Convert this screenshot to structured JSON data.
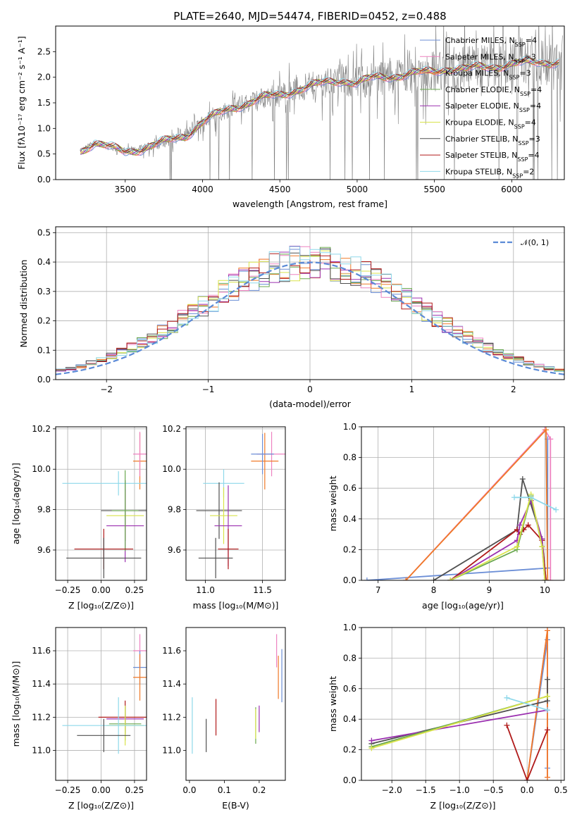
{
  "chart_data": [
    {
      "type": "line",
      "title": "PLATE=2640, MJD=54474, FIBERID=0452, z=0.488",
      "xlabel": "wavelength [Angstrom, rest frame]",
      "ylabel": "Flux [f_λ10^-17 erg cm^-2 s^-1 A^-1]",
      "xlim": [
        3050,
        6340
      ],
      "ylim": [
        0,
        3.0
      ],
      "xticks": [
        "3500",
        "4000",
        "4500",
        "5000",
        "5500",
        "6000"
      ],
      "yticks": [
        "0.0",
        "0.5",
        "1.0",
        "1.5",
        "2.0",
        "2.5"
      ],
      "grid": false,
      "legend_position": "upper right",
      "data_color": "#808080",
      "model_x": [
        3200,
        3300,
        3400,
        3500,
        3600,
        3700,
        3800,
        3900,
        4000,
        4100,
        4200,
        4300,
        4400,
        4500,
        4600,
        4700,
        4800,
        4900,
        5000,
        5100,
        5200,
        5300,
        5400,
        5500,
        5600,
        5700,
        5800,
        5900,
        6000,
        6100,
        6200
      ],
      "model_y": [
        0.55,
        0.72,
        0.62,
        0.55,
        0.6,
        0.68,
        0.78,
        0.88,
        1.12,
        1.28,
        1.42,
        1.5,
        1.6,
        1.66,
        1.75,
        1.82,
        1.9,
        1.95,
        1.88,
        1.98,
        2.02,
        2.05,
        2.08,
        2.12,
        2.18,
        2.15,
        2.2,
        2.22,
        2.25,
        2.28,
        2.3
      ],
      "series": [
        {
          "name": "Chabrier MILES, N_SSP=4",
          "color": "#6b8ed6"
        },
        {
          "name": "Salpeter MILES, N_SSP=3",
          "color": "#ee82c0"
        },
        {
          "name": "Kroupa MILES, N_SSP=3",
          "color": "#f07a28"
        },
        {
          "name": "Chabrier ELODIE, N_SSP=4",
          "color": "#6aa84f"
        },
        {
          "name": "Salpeter ELODIE, N_SSP=4",
          "color": "#9b30b0"
        },
        {
          "name": "Kroupa ELODIE, N_SSP=4",
          "color": "#d9e34a"
        },
        {
          "name": "Chabrier STELIB, N_SSP=3",
          "color": "#505050"
        },
        {
          "name": "Salpeter STELIB, N_SSP=4",
          "color": "#b01a1a"
        },
        {
          "name": "Kroupa STELIB, N_SSP=2",
          "color": "#8ed8ea"
        }
      ]
    },
    {
      "type": "line",
      "title": "",
      "xlabel": "(data-model)/error",
      "ylabel": "Normed distribution",
      "xlim": [
        -2.5,
        2.5
      ],
      "ylim": [
        0,
        0.52
      ],
      "xticks": [
        "-2",
        "-1",
        "0",
        "1",
        "2"
      ],
      "yticks": [
        "0.0",
        "0.1",
        "0.2",
        "0.3",
        "0.4",
        "0.5"
      ],
      "grid": true,
      "legend_position": "upper right",
      "legend_label": "𝒩(0, 1)",
      "gauss_color": "#5b8ad6",
      "bin_edges_start": -2.5,
      "bin_width": 0.1,
      "bin_count": 50,
      "step_colors": [
        "#6b8ed6",
        "#ee82c0",
        "#f07a28",
        "#6aa84f",
        "#9b30b0",
        "#d9e34a",
        "#505050",
        "#b01a1a",
        "#8ed8ea"
      ]
    },
    {
      "type": "scatter",
      "xlabel": "Z [log10(Z/Z⊙)]",
      "ylabel": "age [log10(age/yr)]",
      "xlim": [
        -0.34,
        0.34
      ],
      "ylim": [
        9.45,
        10.21
      ],
      "xticks": [
        "-0.25",
        "0.00",
        "0.25"
      ],
      "yticks": [
        "9.6",
        "9.8",
        "10.0",
        "10.2"
      ],
      "grid": true,
      "points": [
        {
          "x": 0.29,
          "y": 10.04,
          "xerr": 0.05,
          "yerr": 0.14,
          "color": "#f07a28"
        },
        {
          "x": 0.29,
          "y": 10.075,
          "xerr": 0.05,
          "yerr": 0.11,
          "color": "#ee82c0"
        },
        {
          "x": 0.13,
          "y": 9.93,
          "xerr": 0.42,
          "yerr": 0.06,
          "color": "#8ed8ea"
        },
        {
          "x": 0.18,
          "y": 9.795,
          "xerr": 0.18,
          "yerr": 0.15,
          "color": "#505050"
        },
        {
          "x": 0.18,
          "y": 9.77,
          "xerr": 0.14,
          "yerr": 0.12,
          "color": "#d9e34a"
        },
        {
          "x": 0.18,
          "y": 9.72,
          "xerr": 0.14,
          "yerr": 0.18,
          "color": "#9b30b0"
        },
        {
          "x": 0.18,
          "y": 9.795,
          "xerr": 0.1,
          "yerr": 0.2,
          "color": "#6aa84f"
        },
        {
          "x": 0.02,
          "y": 9.605,
          "xerr": 0.22,
          "yerr": 0.1,
          "color": "#b01a1a"
        },
        {
          "x": 0.02,
          "y": 9.56,
          "xerr": 0.28,
          "yerr": 0.1,
          "color": "#505050"
        }
      ]
    },
    {
      "type": "scatter",
      "xlabel": "mass [log10(M/M⊙)]",
      "ylabel": "",
      "xlim": [
        10.83,
        11.7
      ],
      "ylim": [
        9.45,
        10.21
      ],
      "xticks": [
        "11.0",
        "11.5"
      ],
      "yticks": [
        "9.6",
        "9.8",
        "10.0",
        "10.2"
      ],
      "grid": true,
      "points": [
        {
          "x": 11.58,
          "y": 10.075,
          "xerr": 0.13,
          "yerr": 0.11,
          "color": "#ee82c0"
        },
        {
          "x": 11.52,
          "y": 10.04,
          "xerr": 0.12,
          "yerr": 0.14,
          "color": "#f07a28"
        },
        {
          "x": 11.5,
          "y": 10.075,
          "xerr": 0.1,
          "yerr": 0.1,
          "color": "#6b8ed6"
        },
        {
          "x": 11.16,
          "y": 9.93,
          "xerr": 0.18,
          "yerr": 0.07,
          "color": "#8ed8ea"
        },
        {
          "x": 11.12,
          "y": 9.795,
          "xerr": 0.2,
          "yerr": 0.14,
          "color": "#505050"
        },
        {
          "x": 11.16,
          "y": 9.77,
          "xerr": 0.12,
          "yerr": 0.14,
          "color": "#d9e34a"
        },
        {
          "x": 11.2,
          "y": 9.72,
          "xerr": 0.12,
          "yerr": 0.2,
          "color": "#9b30b0"
        },
        {
          "x": 11.2,
          "y": 9.605,
          "xerr": 0.09,
          "yerr": 0.1,
          "color": "#b01a1a"
        },
        {
          "x": 11.09,
          "y": 9.56,
          "xerr": 0.15,
          "yerr": 0.1,
          "color": "#505050"
        }
      ]
    },
    {
      "type": "line",
      "xlabel": "age [log10(age/yr)]",
      "ylabel": "mass weight",
      "xlim": [
        6.7,
        10.35
      ],
      "ylim": [
        0,
        1.0
      ],
      "xticks": [
        "7",
        "8",
        "9",
        "10"
      ],
      "yticks": [
        "0.0",
        "0.2",
        "0.4",
        "0.6",
        "0.8",
        "1.0"
      ],
      "grid": true,
      "series": [
        {
          "color": "#6b8ed6",
          "x": [
            6.8,
            10.05,
            10.05
          ],
          "y": [
            0.0,
            0.08,
            0.92
          ]
        },
        {
          "color": "#ee82c0",
          "x": [
            7.5,
            10.0,
            10.1,
            10.1
          ],
          "y": [
            0.0,
            0.98,
            0.92,
            0.0
          ]
        },
        {
          "color": "#f07a28",
          "x": [
            7.5,
            10.02,
            10.05
          ],
          "y": [
            0.0,
            0.98,
            0.0
          ]
        },
        {
          "color": "#505050",
          "x": [
            8.0,
            9.5,
            9.6,
            9.95,
            10.02
          ],
          "y": [
            0.0,
            0.33,
            0.66,
            0.27,
            0.0
          ]
        },
        {
          "color": "#b01a1a",
          "x": [
            8.3,
            9.5,
            9.55,
            9.62,
            9.7,
            9.95,
            10.02
          ],
          "y": [
            0.0,
            0.33,
            0.3,
            0.33,
            0.36,
            0.26,
            0.0
          ]
        },
        {
          "color": "#9b30b0",
          "x": [
            8.3,
            9.5,
            9.55,
            9.75,
            9.95,
            10.0
          ],
          "y": [
            0.0,
            0.26,
            0.36,
            0.52,
            0.27,
            0.0
          ]
        },
        {
          "color": "#6aa84f",
          "x": [
            8.3,
            9.5,
            9.75,
            9.95,
            10.0
          ],
          "y": [
            0.0,
            0.2,
            0.55,
            0.22,
            0.0
          ]
        },
        {
          "color": "#d9e34a",
          "x": [
            8.3,
            9.5,
            9.75,
            9.95,
            10.0
          ],
          "y": [
            0.0,
            0.22,
            0.56,
            0.22,
            0.0
          ]
        },
        {
          "color": "#8ed8ea",
          "x": [
            9.45,
            9.75,
            10.2
          ],
          "y": [
            0.54,
            0.54,
            0.46
          ]
        }
      ]
    },
    {
      "type": "scatter",
      "xlabel": "Z [log10(Z/Z⊙)]",
      "ylabel": "mass [log10(M/M⊙)]",
      "xlim": [
        -0.34,
        0.34
      ],
      "ylim": [
        10.82,
        11.74
      ],
      "xticks": [
        "-0.25",
        "0.00",
        "0.25"
      ],
      "yticks": [
        "11.0",
        "11.2",
        "11.4",
        "11.6"
      ],
      "grid": true,
      "points": [
        {
          "x": 0.29,
          "y": 11.6,
          "xerr": 0.05,
          "yerr": 0.1,
          "color": "#ee82c0"
        },
        {
          "x": 0.29,
          "y": 11.5,
          "xerr": 0.05,
          "yerr": 0.1,
          "color": "#6b8ed6"
        },
        {
          "x": 0.29,
          "y": 11.44,
          "xerr": 0.05,
          "yerr": 0.14,
          "color": "#f07a28"
        },
        {
          "x": 0.18,
          "y": 11.2,
          "xerr": 0.2,
          "yerr": 0.1,
          "color": "#b01a1a"
        },
        {
          "x": 0.18,
          "y": 11.19,
          "xerr": 0.14,
          "yerr": 0.08,
          "color": "#9b30b0"
        },
        {
          "x": 0.18,
          "y": 11.16,
          "xerr": 0.12,
          "yerr": 0.1,
          "color": "#6aa84f"
        },
        {
          "x": 0.18,
          "y": 11.15,
          "xerr": 0.14,
          "yerr": 0.12,
          "color": "#d9e34a"
        },
        {
          "x": 0.13,
          "y": 11.15,
          "xerr": 0.42,
          "yerr": 0.17,
          "color": "#8ed8ea"
        },
        {
          "x": 0.02,
          "y": 11.09,
          "xerr": 0.2,
          "yerr": 0.1,
          "color": "#505050"
        }
      ]
    },
    {
      "type": "scatter",
      "xlabel": "E(B-V)",
      "ylabel": "",
      "xlim": [
        -0.01,
        0.275
      ],
      "ylim": [
        10.82,
        11.74
      ],
      "xticks": [
        "0.0",
        "0.1",
        "0.2"
      ],
      "yticks": [
        "11.0",
        "11.2",
        "11.4",
        "11.6"
      ],
      "grid": false,
      "points": [
        {
          "x": 0.008,
          "y": 11.15,
          "yerr": 0.17,
          "color": "#8ed8ea"
        },
        {
          "x": 0.048,
          "y": 11.09,
          "yerr": 0.1,
          "color": "#505050"
        },
        {
          "x": 0.076,
          "y": 11.2,
          "yerr": 0.11,
          "color": "#b01a1a"
        },
        {
          "x": 0.19,
          "y": 11.15,
          "yerr": 0.11,
          "color": "#6aa84f"
        },
        {
          "x": 0.19,
          "y": 11.16,
          "yerr": 0.09,
          "color": "#d9e34a"
        },
        {
          "x": 0.2,
          "y": 11.19,
          "yerr": 0.08,
          "color": "#9b30b0"
        },
        {
          "x": 0.25,
          "y": 11.6,
          "yerr": 0.1,
          "color": "#ee82c0"
        },
        {
          "x": 0.255,
          "y": 11.44,
          "yerr": 0.13,
          "color": "#f07a28"
        },
        {
          "x": 0.265,
          "y": 11.45,
          "yerr": 0.16,
          "color": "#6b8ed6"
        }
      ]
    },
    {
      "type": "line",
      "xlabel": "Z [log10(Z/Z⊙)]",
      "ylabel": "mass weight",
      "xlim": [
        -2.45,
        0.55
      ],
      "ylim": [
        0,
        1.0
      ],
      "xticks": [
        "-2.0",
        "-1.5",
        "-1.0",
        "-0.5",
        "0.0",
        "0.5"
      ],
      "yticks": [
        "0.0",
        "0.2",
        "0.4",
        "0.6",
        "0.8",
        "1.0"
      ],
      "grid": true,
      "series": [
        {
          "color": "#6b8ed6",
          "x": [
            0.0,
            0.3,
            0.3
          ],
          "y": [
            0.0,
            0.92,
            0.08
          ]
        },
        {
          "color": "#ee82c0",
          "x": [
            0.0,
            0.3,
            0.3
          ],
          "y": [
            0.0,
            0.98,
            0.02
          ]
        },
        {
          "color": "#f07a28",
          "x": [
            0.0,
            0.3,
            0.3
          ],
          "y": [
            0.0,
            0.98,
            0.02
          ]
        },
        {
          "color": "#b01a1a",
          "x": [
            -0.3,
            0.0,
            0.3
          ],
          "y": [
            0.36,
            0.0,
            0.33
          ]
        },
        {
          "color": "#505050",
          "x": [
            -2.3,
            0.3,
            0.3
          ],
          "y": [
            0.24,
            0.52,
            0.66
          ]
        },
        {
          "color": "#9b30b0",
          "x": [
            -2.3,
            0.3
          ],
          "y": [
            0.26,
            0.46
          ]
        },
        {
          "color": "#6aa84f",
          "x": [
            -2.3,
            0.3
          ],
          "y": [
            0.22,
            0.55
          ]
        },
        {
          "color": "#d9e34a",
          "x": [
            -2.3,
            0.3
          ],
          "y": [
            0.21,
            0.55
          ]
        },
        {
          "color": "#8ed8ea",
          "x": [
            -0.3,
            0.3
          ],
          "y": [
            0.54,
            0.46
          ]
        }
      ]
    }
  ]
}
